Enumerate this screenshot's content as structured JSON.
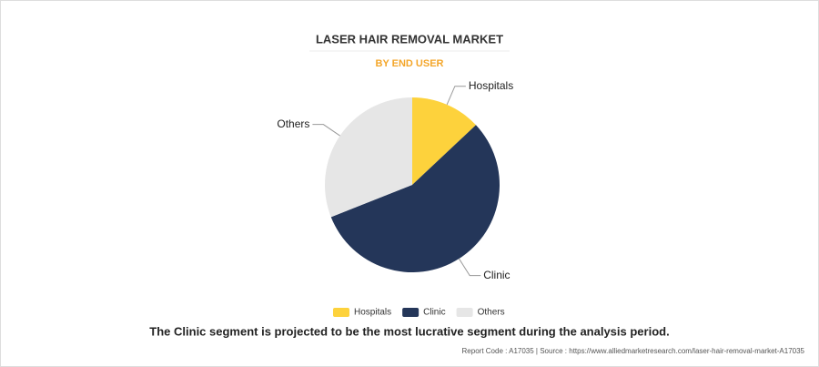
{
  "chart_data": {
    "type": "pie",
    "title": "LASER HAIR REMOVAL MARKET",
    "subtitle": "BY END USER",
    "categories": [
      "Hospitals",
      "Clinic",
      "Others"
    ],
    "values": [
      13,
      56,
      31
    ],
    "colors": [
      "#fdd23c",
      "#243659",
      "#e6e6e6"
    ],
    "legend": "bottom"
  },
  "caption": "The Clinic segment is projected to be the most lucrative segment during the analysis period.",
  "source": "Report Code : A17035  |  Source : https://www.alliedmarketresearch.com/laser-hair-removal-market-A17035"
}
